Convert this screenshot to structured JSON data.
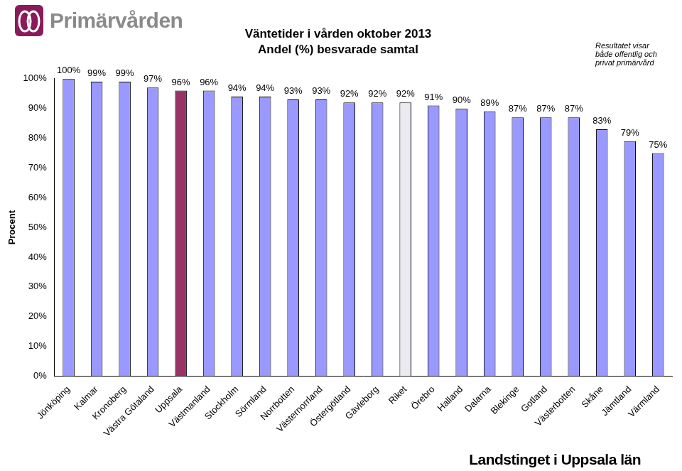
{
  "chart_data": {
    "type": "bar",
    "title": "Väntetider i vården oktober 2013",
    "subtitle": "Andel (%) besvarade samtal",
    "y_label": "Procent",
    "annotations": [
      "Resultatet visar både offentlig och privat primärvård",
      "Primärvården",
      "Landstinget i Uppsala län"
    ],
    "categories": [
      "Jönköping",
      "Kalmar",
      "Kronoberg",
      "Västra Götaland",
      "Uppsala",
      "Västmanland",
      "Stockholm",
      "Sörmland",
      "Norrbotten",
      "Västernorrland",
      "Östergötland",
      "Gävleborg",
      "Riket",
      "Örebro",
      "Halland",
      "Dalarna",
      "Blekinge",
      "Gotland",
      "Västerbotten",
      "Skåne",
      "Jämtland",
      "Värmland"
    ],
    "values": [
      100,
      99,
      99,
      97,
      96,
      96,
      94,
      94,
      93,
      93,
      92,
      92,
      92,
      91,
      90,
      89,
      87,
      87,
      87,
      83,
      79,
      75
    ],
    "value_labels": [
      "100%",
      "99%",
      "99%",
      "97%",
      "96%",
      "96%",
      "94%",
      "94%",
      "93%",
      "93%",
      "92%",
      "92%",
      "92%",
      "91%",
      "90%",
      "89%",
      "87%",
      "87%",
      "87%",
      "83%",
      "79%",
      "75%"
    ],
    "data_labels": true,
    "colors": [
      "#9999ff",
      "#9999ff",
      "#9999ff",
      "#9999ff",
      "#993366",
      "#9999ff",
      "#9999ff",
      "#9999ff",
      "#9999ff",
      "#9999ff",
      "#9999ff",
      "#9999ff",
      "#eaeaf0",
      "#9999ff",
      "#9999ff",
      "#9999ff",
      "#9999ff",
      "#9999ff",
      "#9999ff",
      "#9999ff",
      "#9999ff",
      "#9999ff"
    ],
    "ylim": [
      0,
      100
    ],
    "yticks": [
      {
        "value": 0,
        "label": "0%"
      },
      {
        "value": 10,
        "label": "10%"
      },
      {
        "value": 20,
        "label": "20%"
      },
      {
        "value": 30,
        "label": "30%"
      },
      {
        "value": 40,
        "label": "40%"
      },
      {
        "value": 50,
        "label": "50%"
      },
      {
        "value": 60,
        "label": "60%"
      },
      {
        "value": 70,
        "label": "70%"
      },
      {
        "value": 80,
        "label": "80%"
      },
      {
        "value": 90,
        "label": "90%"
      },
      {
        "value": 100,
        "label": "100%"
      }
    ],
    "grid": false
  }
}
